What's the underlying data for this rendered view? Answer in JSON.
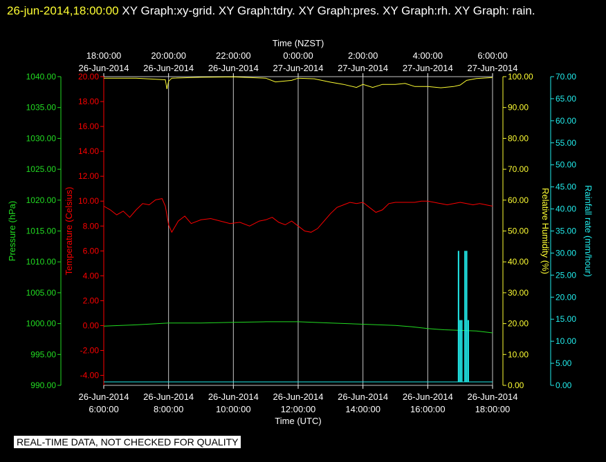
{
  "header": {
    "timestamp": "26-jun-2014,18:00:00",
    "graph_list": "XY Graph:xy-grid.  XY Graph:tdry.  XY Graph:pres.  XY Graph:rh.  XY Graph: rain."
  },
  "notice": "REAL-TIME DATA, NOT CHECKED FOR QUALITY",
  "colors": {
    "background": "#000000",
    "grid": "#c8c8c8",
    "temperature": "#ff0000",
    "pressure": "#22dd22",
    "humidity": "#ffff33",
    "rain": "#22eeee",
    "timestamp": "#ffff33"
  },
  "chart_data": {
    "type": "line",
    "x_top": {
      "label": "Time (NZST)",
      "ticks": [
        {
          "time": "18:00:00",
          "date": "26-Jun-2014"
        },
        {
          "time": "20:00:00",
          "date": "26-Jun-2014"
        },
        {
          "time": "22:00:00",
          "date": "26-Jun-2014"
        },
        {
          "time": "0:00:00",
          "date": "27-Jun-2014"
        },
        {
          "time": "2:00:00",
          "date": "27-Jun-2014"
        },
        {
          "time": "4:00:00",
          "date": "27-Jun-2014"
        },
        {
          "time": "6:00:00",
          "date": "27-Jun-2014"
        }
      ]
    },
    "x_bottom": {
      "label": "Time (UTC)",
      "ticks": [
        {
          "date": "26-Jun-2014",
          "time": "6:00:00"
        },
        {
          "date": "26-Jun-2014",
          "time": "8:00:00"
        },
        {
          "date": "26-Jun-2014",
          "time": "10:00:00"
        },
        {
          "date": "26-Jun-2014",
          "time": "12:00:00"
        },
        {
          "date": "26-Jun-2014",
          "time": "14:00:00"
        },
        {
          "date": "26-Jun-2014",
          "time": "16:00:00"
        },
        {
          "date": "26-Jun-2014",
          "time": "18:00:00"
        }
      ]
    },
    "xlim_utc_hours": [
      6,
      18
    ],
    "axes": {
      "pressure": {
        "label": "Pressure (hPa)",
        "ylim": [
          990,
          1040
        ],
        "ticks": [
          "990.00",
          "995.00",
          "1000.00",
          "1005.00",
          "1010.00",
          "1015.00",
          "1020.00",
          "1025.00",
          "1030.00",
          "1035.00",
          "1040.00"
        ]
      },
      "temperature": {
        "label": "Temperature (Celsius)",
        "ylim": [
          -4.8,
          20
        ],
        "ticks": [
          "-4.00",
          "-2.00",
          "0.00",
          "2.00",
          "4.00",
          "6.00",
          "8.00",
          "10.00",
          "12.00",
          "14.00",
          "16.00",
          "18.00",
          "20.00"
        ]
      },
      "humidity": {
        "label": "Relative Humidity (%)",
        "ylim": [
          0,
          100
        ],
        "ticks": [
          "0.00",
          "10.00",
          "20.00",
          "30.00",
          "40.00",
          "50.00",
          "60.00",
          "70.00",
          "80.00",
          "90.00",
          "100.00"
        ]
      },
      "rain": {
        "label": "Rainfall rate (mm/hour)",
        "ylim": [
          0,
          70
        ],
        "ticks": [
          "0.00",
          "5.00",
          "10.00",
          "15.00",
          "20.00",
          "25.00",
          "30.00",
          "35.00",
          "40.00",
          "45.00",
          "50.00",
          "55.00",
          "60.00",
          "65.00",
          "70.00"
        ]
      }
    },
    "series": [
      {
        "name": "Temperature (Celsius)",
        "axis": "temperature",
        "color": "#ff0000",
        "x": [
          6,
          6.2,
          6.4,
          6.6,
          6.8,
          7,
          7.2,
          7.4,
          7.6,
          7.8,
          7.9,
          8,
          8.1,
          8.3,
          8.5,
          8.7,
          9,
          9.3,
          9.6,
          9.9,
          10.2,
          10.5,
          10.8,
          11,
          11.2,
          11.4,
          11.6,
          11.8,
          12,
          12.2,
          12.4,
          12.6,
          12.8,
          13,
          13.2,
          13.4,
          13.6,
          13.8,
          14,
          14.2,
          14.4,
          14.6,
          14.8,
          15,
          15.2,
          15.4,
          15.6,
          15.8,
          16,
          16.2,
          16.4,
          16.6,
          16.8,
          17,
          17.2,
          17.4,
          17.6,
          17.8,
          18
        ],
        "y": [
          9.6,
          9.3,
          8.9,
          9.2,
          8.7,
          9.3,
          9.8,
          9.7,
          10.1,
          10.2,
          9.6,
          8.1,
          7.5,
          8.4,
          8.8,
          8.2,
          8.5,
          8.6,
          8.4,
          8.2,
          8.3,
          8.0,
          8.4,
          8.5,
          8.7,
          8.3,
          8.1,
          8.4,
          8.0,
          7.6,
          7.5,
          7.8,
          8.4,
          9.0,
          9.5,
          9.7,
          9.9,
          9.8,
          9.9,
          9.5,
          9.1,
          9.3,
          9.8,
          9.9,
          9.9,
          9.9,
          9.9,
          10.0,
          10.0,
          9.9,
          9.8,
          9.7,
          9.8,
          9.9,
          9.8,
          9.7,
          9.8,
          9.7,
          9.6
        ]
      },
      {
        "name": "Pressure (hPa)",
        "axis": "pressure",
        "color": "#22dd22",
        "x": [
          6,
          7,
          8,
          9,
          10,
          11,
          12,
          13,
          14,
          15,
          15.5,
          16,
          16.5,
          17,
          17.5,
          18
        ],
        "y": [
          999.6,
          999.8,
          1000.1,
          1000.1,
          1000.2,
          1000.3,
          1000.3,
          1000.1,
          999.9,
          999.7,
          999.5,
          999.2,
          999.0,
          998.9,
          998.8,
          998.5
        ]
      },
      {
        "name": "Relative Humidity (%)",
        "axis": "humidity",
        "color": "#ffff33",
        "x": [
          6,
          7,
          7.9,
          7.95,
          8,
          8.1,
          9,
          10,
          11,
          11.3,
          11.8,
          12,
          12.5,
          13,
          13.4,
          13.8,
          14,
          14.3,
          14.6,
          15,
          15.3,
          15.6,
          16,
          16.4,
          16.8,
          17,
          17.2,
          17.5,
          18
        ],
        "y": [
          99.5,
          99.5,
          99,
          96,
          98.5,
          99.5,
          99.8,
          99.9,
          99.5,
          98.3,
          98.8,
          99.5,
          99.3,
          98.2,
          97.5,
          96.5,
          97.5,
          96.5,
          97.5,
          97.5,
          97.8,
          96.8,
          96.8,
          96.4,
          96.8,
          97.3,
          98.8,
          99.4,
          99.7
        ]
      },
      {
        "name": "Rainfall rate (mm/hour)",
        "axis": "rain",
        "color": "#22eeee",
        "type": "bar",
        "x": [
          16.95,
          17.0,
          17.05,
          17.15,
          17.2,
          17.25
        ],
        "y": [
          30.5,
          14.8,
          14.8,
          30.5,
          30.5,
          14.8
        ]
      }
    ]
  }
}
